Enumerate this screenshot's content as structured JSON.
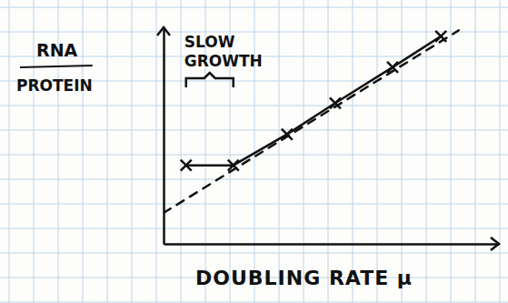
{
  "chart_data": {
    "type": "line",
    "x_label": "DOUBLING RATE μ",
    "y_label": [
      "RNA",
      "PROTEIN"
    ],
    "annotations": [
      {
        "text": "SLOW GROWTH",
        "x": [
          0.67,
          2.08
        ]
      }
    ],
    "xlim": [
      0,
      10
    ],
    "ylim": [
      0,
      7
    ],
    "xticks": [],
    "yticks": [],
    "tick_labels": false,
    "series": [
      {
        "x": [
          0.67,
          2.08,
          3.68,
          5.12,
          6.83,
          8.27
        ],
        "values": [
          2.54,
          2.54,
          3.54,
          4.55,
          5.71,
          6.71
        ],
        "color": "#111111",
        "marker": "x",
        "line_style": "solid"
      },
      {
        "x": [
          0,
          8.8
        ],
        "values": [
          1.0,
          6.9
        ],
        "color": "#111111",
        "marker": "none",
        "line_style": "dashed"
      }
    ]
  }
}
